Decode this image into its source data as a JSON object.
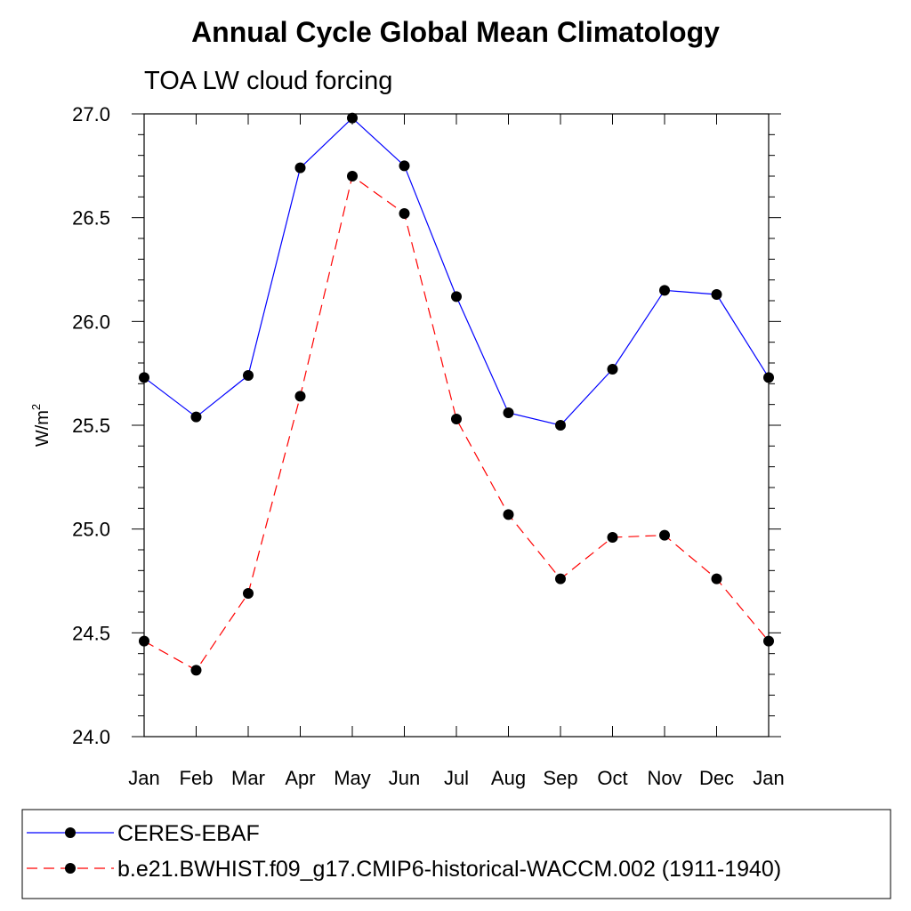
{
  "chart_data": {
    "type": "line",
    "title": "Annual Cycle Global Mean Climatology",
    "subtitle": "TOA LW cloud forcing",
    "ylabel": "W/m",
    "ylabel_superscript": "2",
    "xlabel": "",
    "categories": [
      "Jan",
      "Feb",
      "Mar",
      "Apr",
      "May",
      "Jun",
      "Jul",
      "Aug",
      "Sep",
      "Oct",
      "Nov",
      "Dec",
      "Jan"
    ],
    "ylim": [
      24.0,
      27.0
    ],
    "yticks": [
      "24.0",
      "24.5",
      "25.0",
      "25.5",
      "26.0",
      "26.5",
      "27.0"
    ],
    "grid": false,
    "legend_position": "bottom",
    "series": [
      {
        "name": "CERES-EBAF",
        "color": "#0000ff",
        "line_style": "solid",
        "marker": "filled-circle",
        "values": [
          25.73,
          25.54,
          25.74,
          26.74,
          26.98,
          26.75,
          26.12,
          25.56,
          25.5,
          25.77,
          26.15,
          26.13,
          25.73
        ]
      },
      {
        "name": "b.e21.BWHIST.f09_g17.CMIP6-historical-WACCM.002 (1911-1940)",
        "color": "#ff0000",
        "line_style": "dashed",
        "marker": "filled-circle",
        "values": [
          24.46,
          24.32,
          24.69,
          25.64,
          26.7,
          26.52,
          25.53,
          25.07,
          24.76,
          24.96,
          24.97,
          24.76,
          24.46
        ]
      }
    ]
  }
}
